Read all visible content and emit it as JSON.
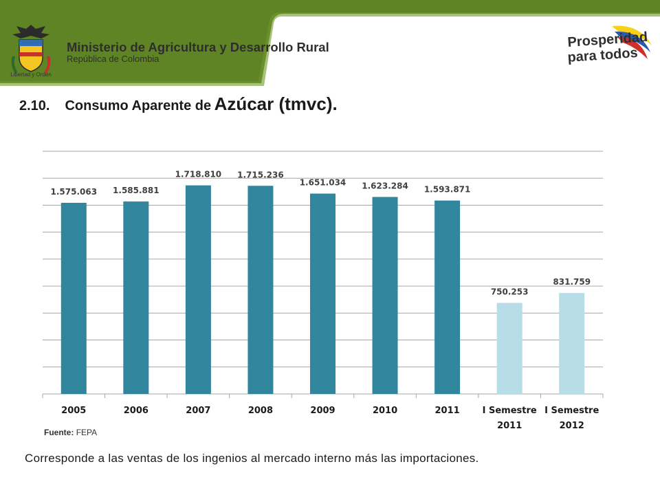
{
  "header": {
    "ministry_title": "Ministerio de Agricultura y Desarrollo Rural",
    "ministry_subtitle": "República de Colombia",
    "motto": "Libertad y Orden",
    "brand_line1": "Prosperidad",
    "brand_line2": "para todos",
    "colors": {
      "band": "#6b8f2a",
      "band_light": "#a7c27a"
    }
  },
  "slide": {
    "number": "2.10.",
    "title_lead": "Consumo Aparente de",
    "title_emph": "Azúcar (tmvc)."
  },
  "chart_data": {
    "type": "bar",
    "categories": [
      "2005",
      "2006",
      "2007",
      "2008",
      "2009",
      "2010",
      "2011",
      "I Semestre 2011",
      "I Semestre 2012"
    ],
    "category_lines": [
      [
        "2005"
      ],
      [
        "2006"
      ],
      [
        "2007"
      ],
      [
        "2008"
      ],
      [
        "2009"
      ],
      [
        "2010"
      ],
      [
        "2011"
      ],
      [
        "I Semestre",
        "2011"
      ],
      [
        "I Semestre",
        "2012"
      ]
    ],
    "values": [
      1575063,
      1585881,
      1718810,
      1715236,
      1651034,
      1623284,
      1593871,
      750253,
      831759
    ],
    "value_labels": [
      "1.575.063",
      "1.585.881",
      "1.718.810",
      "1.715.236",
      "1.651.034",
      "1.623.284",
      "1.593.871",
      "750.253",
      "831.759"
    ],
    "ylim": [
      0,
      2000000
    ],
    "grid": true,
    "colors": [
      "#31859c",
      "#31859c",
      "#31859c",
      "#31859c",
      "#31859c",
      "#31859c",
      "#31859c",
      "#b7dde8",
      "#b7dde8"
    ]
  },
  "footer": {
    "source_label": "Fuente:",
    "source_value": "FEPA",
    "note": "Corresponde a las ventas de los ingenios al mercado interno más las importaciones."
  }
}
